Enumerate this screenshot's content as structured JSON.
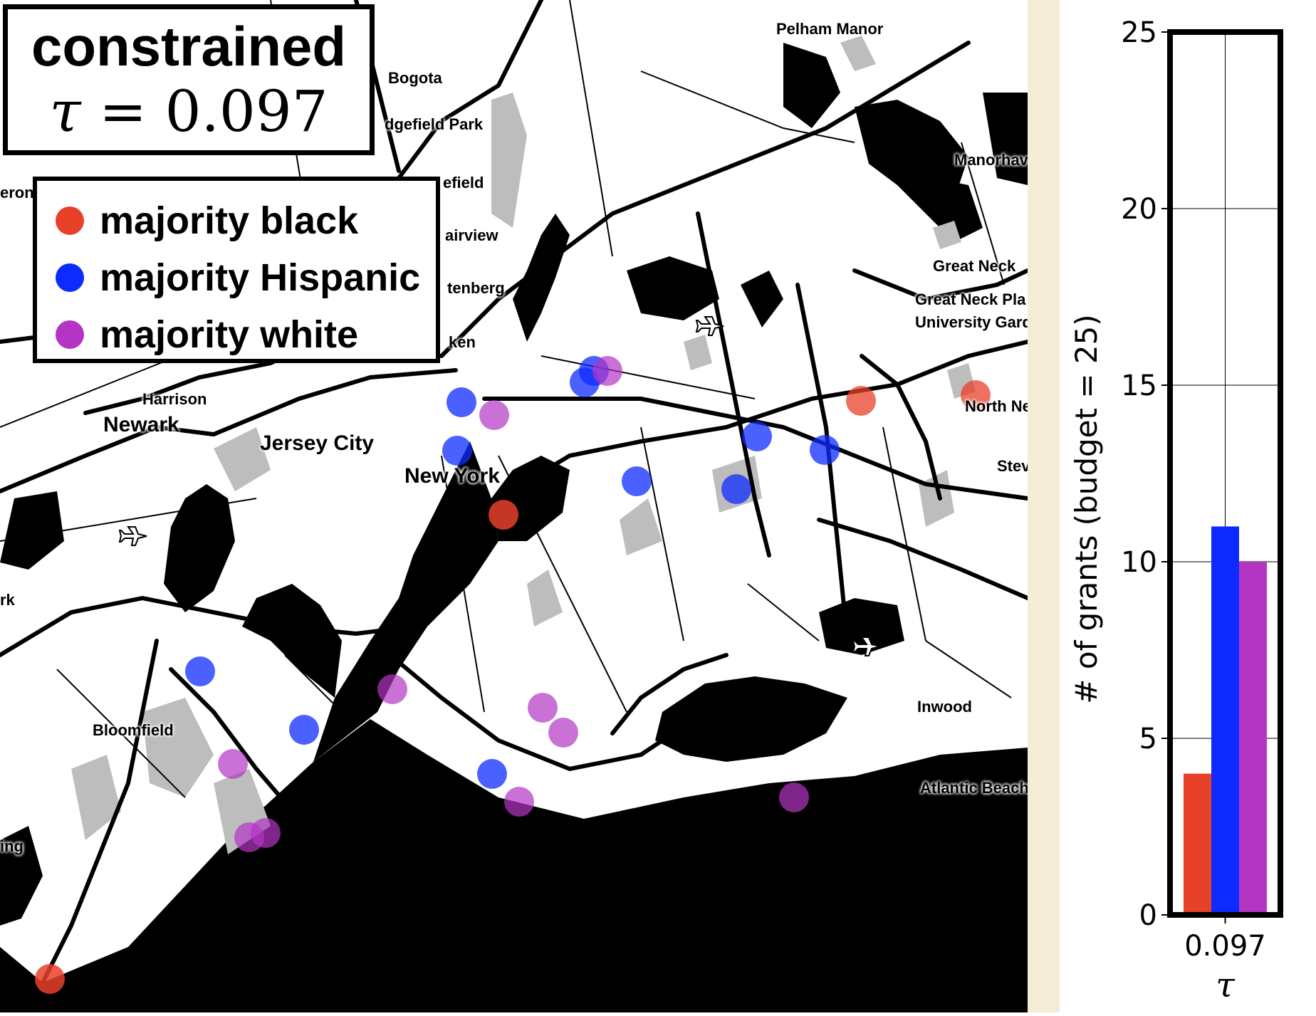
{
  "title": {
    "line1": "constrained",
    "tau_symbol": "τ",
    "tau_eq": " = 0.097"
  },
  "legend": [
    {
      "label": "majority black",
      "color": "#e8412a"
    },
    {
      "label": "majority Hispanic",
      "color": "#0d2bff"
    },
    {
      "label": "majority white",
      "color": "#b435c4"
    }
  ],
  "places": [
    "Pelham Manor",
    "Bogota",
    "dgefield Park",
    "efield",
    "Manorhav",
    "airview",
    "tenberg",
    "Great Neck",
    "Great Neck Pla",
    "University Gard",
    "ken",
    "Harrison",
    "Newark",
    "Jersey City",
    "New York",
    "North Ne",
    "Stev",
    "Inwood",
    "Bloomfield",
    "Atlantic Beach",
    "eron",
    "rk",
    "ing"
  ],
  "chart_data": {
    "type": "bar",
    "categories": [
      "0.097"
    ],
    "series": [
      {
        "name": "majority black",
        "values": [
          4
        ],
        "color": "#e8412a"
      },
      {
        "name": "majority Hispanic",
        "values": [
          11
        ],
        "color": "#0d2bff"
      },
      {
        "name": "majority white",
        "values": [
          10
        ],
        "color": "#b435c4"
      }
    ],
    "xlabel": "τ",
    "ylabel": "# of grants (budget = 25)",
    "ylim": [
      0,
      25
    ],
    "yticks": [
      "0",
      "5",
      "10",
      "15",
      "20",
      "25"
    ],
    "grid": true
  }
}
